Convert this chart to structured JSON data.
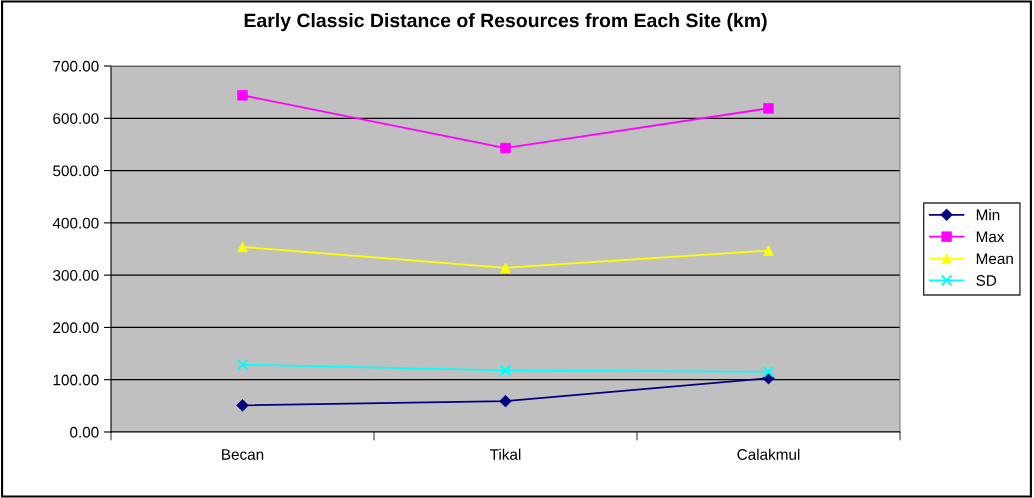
{
  "chart_data": {
    "type": "line",
    "title": "Early Classic Distance of Resources from Each Site (km)",
    "categories": [
      "Becan",
      "Tikal",
      "Calakmul"
    ],
    "series": [
      {
        "name": "Min",
        "color": "#000080",
        "marker": "diamond",
        "values": [
          51,
          59,
          103
        ]
      },
      {
        "name": "Max",
        "color": "#ff00ff",
        "marker": "square",
        "values": [
          644,
          543,
          619
        ]
      },
      {
        "name": "Mean",
        "color": "#ffff00",
        "marker": "triangle",
        "values": [
          354,
          314,
          347
        ]
      },
      {
        "name": "SD",
        "color": "#00ffff",
        "marker": "cross",
        "values": [
          129,
          118,
          115
        ]
      }
    ],
    "ylim": [
      0,
      700
    ],
    "yticks": [
      {
        "value": 0,
        "label": "0.00"
      },
      {
        "value": 100,
        "label": "100.00"
      },
      {
        "value": 200,
        "label": "200.00"
      },
      {
        "value": 300,
        "label": "300.00"
      },
      {
        "value": 400,
        "label": "400.00"
      },
      {
        "value": 500,
        "label": "500.00"
      },
      {
        "value": 600,
        "label": "600.00"
      },
      {
        "value": 700,
        "label": "700.00"
      }
    ],
    "grid": "y",
    "legend": "right"
  }
}
